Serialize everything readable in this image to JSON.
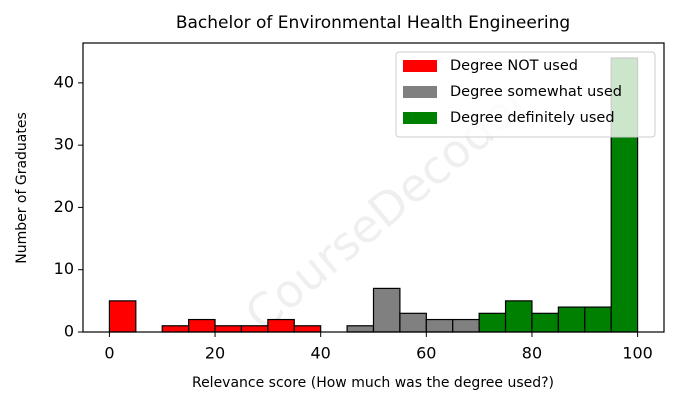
{
  "chart_data": {
    "type": "histogram",
    "title": "Bachelor of Environmental Health Engineering",
    "x_label": "Relevance score (How much was the degree used?)",
    "y_label": "Number of Graduates",
    "watermark": "CourseDecoder",
    "bins": [
      0,
      5,
      10,
      15,
      20,
      25,
      30,
      35,
      40,
      45,
      50,
      55,
      60,
      65,
      70,
      75,
      80,
      85,
      90,
      95,
      100
    ],
    "series": [
      {
        "name": "Degree NOT used",
        "color": "#ff0000",
        "values": [
          5,
          0,
          1,
          2,
          1,
          1,
          2,
          1,
          0,
          0,
          0,
          0,
          0,
          0,
          0,
          0,
          0,
          0,
          0,
          0
        ]
      },
      {
        "name": "Degree somewhat used",
        "color": "#808080",
        "values": [
          0,
          0,
          0,
          0,
          0,
          0,
          0,
          0,
          0,
          1,
          7,
          3,
          2,
          2,
          0,
          0,
          0,
          0,
          0,
          0
        ]
      },
      {
        "name": "Degree definitely used",
        "color": "#008000",
        "values": [
          0,
          0,
          0,
          0,
          0,
          0,
          0,
          0,
          0,
          0,
          0,
          0,
          0,
          0,
          3,
          5,
          3,
          4,
          4,
          44
        ]
      }
    ],
    "xlim": [
      -5,
      105
    ],
    "ylim": [
      0,
      46.4
    ],
    "xticks": [
      0,
      20,
      40,
      60,
      80,
      100
    ],
    "yticks": [
      0,
      10,
      20,
      30,
      40
    ],
    "legend": "upper right"
  }
}
